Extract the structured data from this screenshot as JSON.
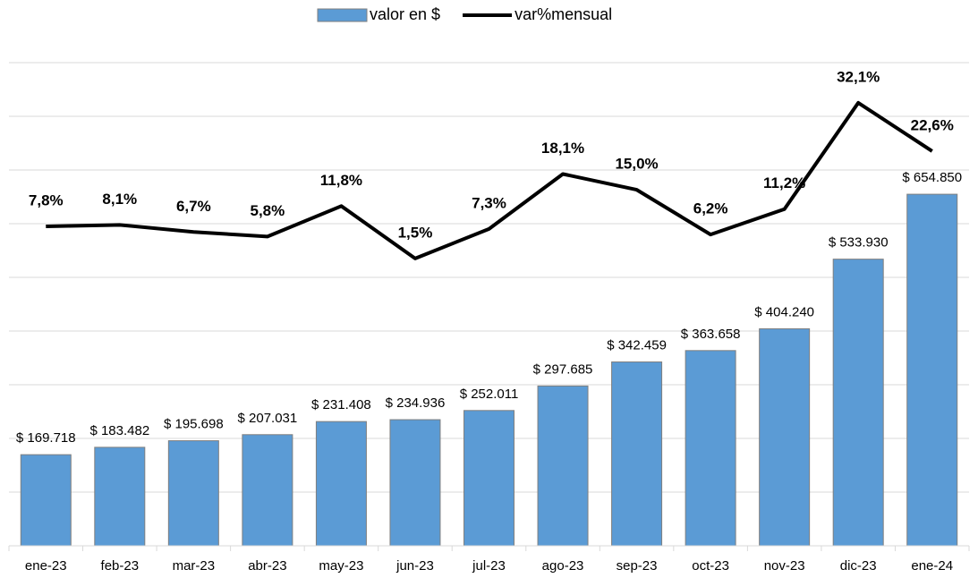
{
  "chart_data": {
    "type": "bar",
    "categories": [
      "ene-23",
      "feb-23",
      "mar-23",
      "abr-23",
      "may-23",
      "jun-23",
      "jul-23",
      "ago-23",
      "sep-23",
      "oct-23",
      "nov-23",
      "dic-23",
      "ene-24"
    ],
    "series": [
      {
        "name": "valor en $",
        "type": "bar",
        "color": "#5b9bd5",
        "values": [
          169718,
          183482,
          195698,
          207031,
          231408,
          234936,
          252011,
          297685,
          342459,
          363658,
          404240,
          533930,
          654850
        ],
        "value_labels": [
          "$ 169.718",
          "$ 183.482",
          "$ 195.698",
          "$ 207.031",
          "$ 231.408",
          "$ 234.936",
          "$ 252.011",
          "$ 297.685",
          "$ 342.459",
          "$ 363.658",
          "$ 404.240",
          "$ 533.930",
          "$ 654.850"
        ]
      },
      {
        "name": "var%mensual",
        "type": "line",
        "color": "#000000",
        "axis": "y2",
        "values": [
          7.8,
          8.1,
          6.7,
          5.8,
          11.8,
          1.5,
          7.3,
          18.1,
          15.0,
          6.2,
          11.2,
          32.1,
          22.6
        ],
        "value_labels": [
          "7,8%",
          "8,1%",
          "6,7%",
          "5,8%",
          "11,8%",
          "1,5%",
          "7,3%",
          "18,1%",
          "15,0%",
          "6,2%",
          "11,2%",
          "32,1%",
          "22,6%"
        ]
      }
    ],
    "ylim": [
      0,
      900000
    ],
    "yticks": [
      0,
      100000,
      200000,
      300000,
      400000,
      500000,
      600000,
      700000,
      800000,
      900000
    ],
    "y2lim": [
      -55,
      40
    ],
    "grid": true,
    "legend": "top"
  }
}
